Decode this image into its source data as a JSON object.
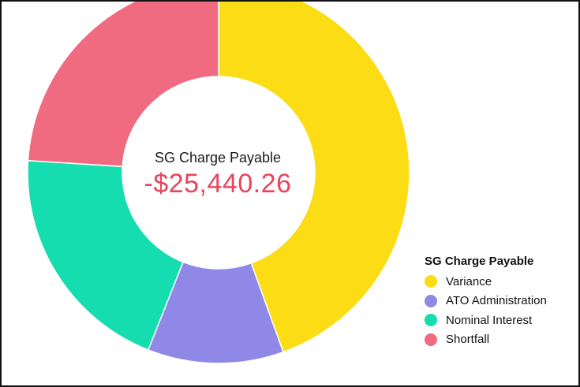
{
  "chart_data": {
    "type": "pie",
    "variant": "donut",
    "title": "SG Charge Payable",
    "center_label": "SG Charge Payable",
    "center_value": "-$25,440.26",
    "legend_title": "SG Charge Payable",
    "legend_position": "bottom-right",
    "categories": [
      "Variance",
      "ATO Administration",
      "Nominal Interest",
      "Shortfall"
    ],
    "values_percent": [
      44.5,
      11.5,
      20,
      24
    ],
    "colors": [
      "#fcdc14",
      "#8f88e6",
      "#16ddb0",
      "#f06a80"
    ],
    "start_angle_deg": 0,
    "direction": "clockwise",
    "draw_order": [
      0,
      3,
      2,
      1
    ]
  }
}
